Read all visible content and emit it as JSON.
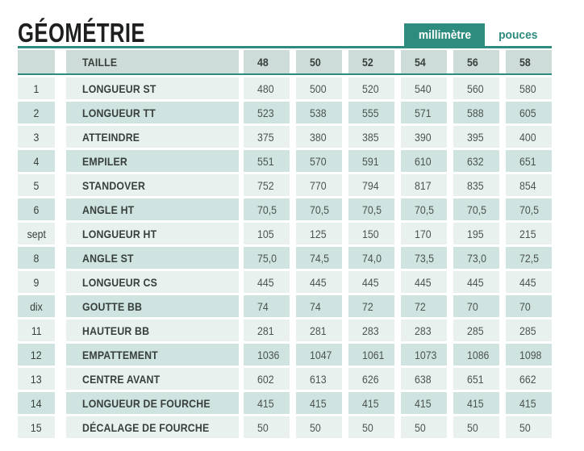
{
  "header": {
    "title": "GÉOMÉTRIE",
    "tabs": [
      {
        "label": "millimètre",
        "active": true
      },
      {
        "label": "pouces",
        "active": false
      }
    ]
  },
  "colors": {
    "accent": "#2E8C7E",
    "header_row_bg": "#CDDCD8",
    "row_odd_bg": "#E9F1EF",
    "row_even_bg": "#CFE4E0",
    "label_text": "#383F3D",
    "value_text": "#4C5351",
    "title_text": "#1D1F1E"
  },
  "table": {
    "columns": [
      "",
      "TAILLE",
      "48",
      "50",
      "52",
      "54",
      "56",
      "58"
    ],
    "rows": [
      {
        "num": "1",
        "label": "LONGUEUR ST",
        "values": [
          "480",
          "500",
          "520",
          "540",
          "560",
          "580"
        ]
      },
      {
        "num": "2",
        "label": "LONGUEUR TT",
        "values": [
          "523",
          "538",
          "555",
          "571",
          "588",
          "605"
        ]
      },
      {
        "num": "3",
        "label": "ATTEINDRE",
        "values": [
          "375",
          "380",
          "385",
          "390",
          "395",
          "400"
        ]
      },
      {
        "num": "4",
        "label": "EMPILER",
        "values": [
          "551",
          "570",
          "591",
          "610",
          "632",
          "651"
        ]
      },
      {
        "num": "5",
        "label": "STANDOVER",
        "values": [
          "752",
          "770",
          "794",
          "817",
          "835",
          "854"
        ]
      },
      {
        "num": "6",
        "label": "ANGLE HT",
        "values": [
          "70,5",
          "70,5",
          "70,5",
          "70,5",
          "70,5",
          "70,5"
        ]
      },
      {
        "num": "sept",
        "label": "LONGUEUR HT",
        "values": [
          "105",
          "125",
          "150",
          "170",
          "195",
          "215"
        ]
      },
      {
        "num": "8",
        "label": "ANGLE ST",
        "values": [
          "75,0",
          "74,5",
          "74,0",
          "73,5",
          "73,0",
          "72,5"
        ]
      },
      {
        "num": "9",
        "label": "LONGUEUR CS",
        "values": [
          "445",
          "445",
          "445",
          "445",
          "445",
          "445"
        ]
      },
      {
        "num": "dix",
        "label": "GOUTTE BB",
        "values": [
          "74",
          "74",
          "72",
          "72",
          "70",
          "70"
        ]
      },
      {
        "num": "11",
        "label": "HAUTEUR BB",
        "values": [
          "281",
          "281",
          "283",
          "283",
          "285",
          "285"
        ]
      },
      {
        "num": "12",
        "label": "EMPATTEMENT",
        "values": [
          "1036",
          "1047",
          "1061",
          "1073",
          "1086",
          "1098"
        ]
      },
      {
        "num": "13",
        "label": "CENTRE AVANT",
        "values": [
          "602",
          "613",
          "626",
          "638",
          "651",
          "662"
        ]
      },
      {
        "num": "14",
        "label": "LONGUEUR DE FOURCHE",
        "values": [
          "415",
          "415",
          "415",
          "415",
          "415",
          "415"
        ]
      },
      {
        "num": "15",
        "label": "DÉCALAGE DE FOURCHE",
        "values": [
          "50",
          "50",
          "50",
          "50",
          "50",
          "50"
        ]
      }
    ]
  }
}
